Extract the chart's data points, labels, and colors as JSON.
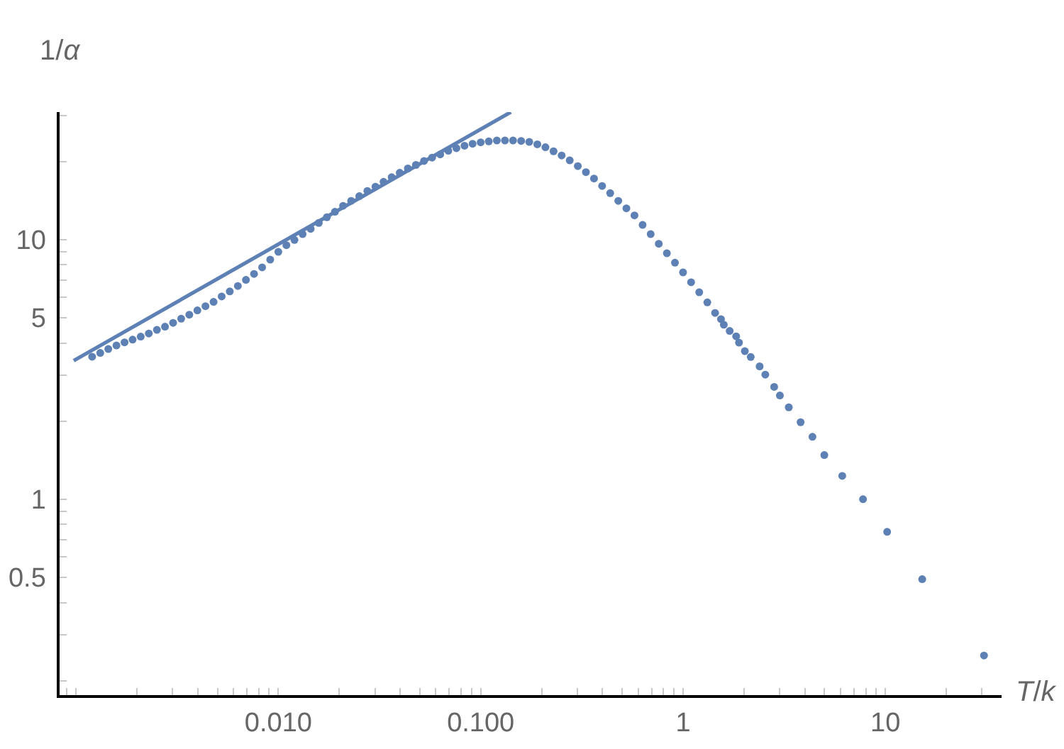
{
  "chart_data": {
    "type": "scatter",
    "xlabel": "T/k",
    "ylabel": "1/α",
    "log": "xy",
    "xlim": [
      0.00083,
      37.5
    ],
    "ylim": [
      0.176,
      31
    ],
    "xticks": [
      {
        "value": 0.0009,
        "label": null
      },
      {
        "value": 0.001,
        "label": null
      },
      {
        "value": 0.002,
        "label": null
      },
      {
        "value": 0.003,
        "label": null
      },
      {
        "value": 0.004,
        "label": null
      },
      {
        "value": 0.005,
        "label": null
      },
      {
        "value": 0.006,
        "label": null
      },
      {
        "value": 0.007,
        "label": null
      },
      {
        "value": 0.008,
        "label": null
      },
      {
        "value": 0.009,
        "label": null
      },
      {
        "value": 0.01,
        "label": "0.010"
      },
      {
        "value": 0.02,
        "label": null
      },
      {
        "value": 0.03,
        "label": null
      },
      {
        "value": 0.04,
        "label": null
      },
      {
        "value": 0.05,
        "label": null
      },
      {
        "value": 0.06,
        "label": null
      },
      {
        "value": 0.07,
        "label": null
      },
      {
        "value": 0.08,
        "label": null
      },
      {
        "value": 0.09,
        "label": null
      },
      {
        "value": 0.1,
        "label": "0.100"
      },
      {
        "value": 0.2,
        "label": null
      },
      {
        "value": 0.3,
        "label": null
      },
      {
        "value": 0.4,
        "label": null
      },
      {
        "value": 0.5,
        "label": null
      },
      {
        "value": 0.6,
        "label": null
      },
      {
        "value": 0.7,
        "label": null
      },
      {
        "value": 0.8,
        "label": null
      },
      {
        "value": 0.9,
        "label": null
      },
      1,
      {
        "value": 2,
        "label": null
      },
      {
        "value": 3,
        "label": null
      },
      {
        "value": 4,
        "label": null
      },
      {
        "value": 5,
        "label": null
      },
      {
        "value": 6,
        "label": null
      },
      {
        "value": 7,
        "label": null
      },
      {
        "value": 8,
        "label": null
      },
      {
        "value": 9,
        "label": null
      },
      10,
      {
        "value": 20,
        "label": null
      },
      {
        "value": 30,
        "label": null
      }
    ],
    "yticks": [
      {
        "value": 0.2,
        "label": null
      },
      {
        "value": 0.3,
        "label": null
      },
      {
        "value": 0.4,
        "label": null
      },
      0.5,
      {
        "value": 0.6,
        "label": null
      },
      {
        "value": 0.7,
        "label": null
      },
      {
        "value": 0.8,
        "label": null
      },
      {
        "value": 0.9,
        "label": null
      },
      1,
      {
        "value": 2,
        "label": null
      },
      {
        "value": 3,
        "label": null
      },
      {
        "value": 4,
        "label": null
      },
      5,
      {
        "value": 6,
        "label": null
      },
      {
        "value": 7,
        "label": null
      },
      {
        "value": 8,
        "label": null
      },
      {
        "value": 9,
        "label": null
      },
      10,
      {
        "value": 20,
        "label": null
      },
      {
        "value": 30,
        "label": null
      }
    ],
    "series": [
      {
        "type": "line",
        "color": "#5e81b5",
        "x": [
          0.000975,
          0.141
        ],
        "values": [
          3.42,
          31
        ]
      },
      {
        "color": "#5e81b5",
        "marker": "circle",
        "x": [
          0.001202,
          0.001318,
          0.001445,
          0.001585,
          0.001738,
          0.001905,
          0.002089,
          0.002291,
          0.002512,
          0.002754,
          0.00302,
          0.003311,
          0.003631,
          0.003981,
          0.004365,
          0.004786,
          0.005248,
          0.005754,
          0.00631,
          0.006918,
          0.007586,
          0.008318,
          0.00912,
          0.01,
          0.01096,
          0.01202,
          0.01318,
          0.01445,
          0.01585,
          0.01738,
          0.01905,
          0.02089,
          0.02291,
          0.02512,
          0.02754,
          0.0302,
          0.03311,
          0.03631,
          0.03981,
          0.04365,
          0.04786,
          0.05248,
          0.05754,
          0.0631,
          0.06918,
          0.07586,
          0.08318,
          0.0912,
          0.1,
          0.1096,
          0.1202,
          0.1318,
          0.1445,
          0.1585,
          0.1738,
          0.1905,
          0.2089,
          0.2291,
          0.2512,
          0.2754,
          0.302,
          0.3311,
          0.3631,
          0.3981,
          0.4365,
          0.4786,
          0.5248,
          0.5754,
          0.631,
          0.6918,
          0.7586,
          0.8318,
          0.912,
          1,
          1.096,
          1.202,
          1.318,
          1.44,
          1.54,
          1.59,
          1.7,
          1.83,
          1.89,
          2.02,
          2.16,
          2.39,
          2.55,
          2.82,
          3.01,
          3.33,
          3.81,
          4.36,
          4.99,
          6.12,
          7.75,
          10.2,
          15.2,
          30.7
        ],
        "values": [
          3.54,
          3.66,
          3.79,
          3.91,
          4.02,
          4.12,
          4.23,
          4.35,
          4.49,
          4.62,
          4.78,
          4.96,
          5.14,
          5.34,
          5.54,
          5.76,
          6.04,
          6.32,
          6.63,
          7.0,
          7.38,
          7.82,
          8.37,
          8.97,
          9.52,
          9.97,
          10.5,
          11.0,
          11.6,
          12.2,
          12.8,
          13.5,
          14.1,
          14.7,
          15.4,
          16.0,
          16.7,
          17.4,
          18.1,
          18.8,
          19.4,
          20.1,
          20.7,
          21.3,
          22.0,
          22.5,
          23.0,
          23.4,
          23.7,
          23.9,
          24.1,
          24.1,
          24.1,
          24.0,
          23.8,
          23.3,
          22.7,
          21.9,
          21.1,
          20.2,
          19.2,
          18.2,
          17.2,
          16.1,
          15.1,
          14.1,
          13.2,
          12.4,
          11.4,
          10.5,
          9.64,
          8.86,
          8.15,
          7.48,
          6.85,
          6.27,
          5.73,
          5.22,
          4.94,
          4.7,
          4.45,
          4.24,
          4.01,
          3.72,
          3.53,
          3.25,
          3.02,
          2.71,
          2.51,
          2.26,
          1.98,
          1.74,
          1.48,
          1.23,
          1.0,
          0.749,
          0.492,
          0.25
        ]
      }
    ]
  }
}
